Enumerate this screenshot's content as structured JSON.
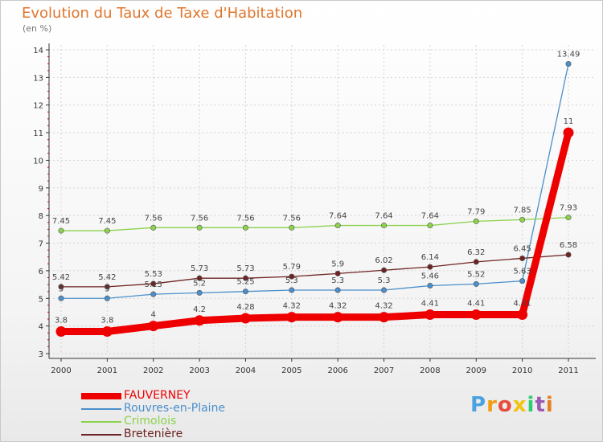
{
  "header": {
    "title": "Evolution du Taux de Taxe d'Habitation",
    "subtitle": "(en %)"
  },
  "colors": {
    "title": "#e0762d",
    "axis": "#333333",
    "grid": "#d4d4d4",
    "tick_marks": "#cc0000"
  },
  "chart_data": {
    "type": "line",
    "title": "Evolution du Taux de Taxe d'Habitation",
    "subtitle": "(en %)",
    "xlabel": "",
    "ylabel": "",
    "x": [
      "2000",
      "2001",
      "2002",
      "2003",
      "2004",
      "2005",
      "2006",
      "2007",
      "2008",
      "2009",
      "2010",
      "2011"
    ],
    "ylim": [
      3,
      14
    ],
    "yticks": [
      3,
      4,
      5,
      6,
      7,
      8,
      9,
      10,
      11,
      12,
      13,
      14
    ],
    "grid": true,
    "legend_position": "bottom-left",
    "series": [
      {
        "name": "FAUVERNEY",
        "color": "#ee0000",
        "thick": true,
        "values": [
          3.8,
          3.8,
          4,
          4.2,
          4.28,
          4.32,
          4.32,
          4.32,
          4.41,
          4.41,
          4.41,
          11
        ],
        "labels": [
          "3.8",
          "3.8",
          "4",
          "4.2",
          "4.28",
          "4.32",
          "4.32",
          "4.32",
          "4.41",
          "4.41",
          "4.41",
          "11"
        ]
      },
      {
        "name": "Rouvres-en-Plaine",
        "color": "#4a8fcb",
        "thick": false,
        "values": [
          5,
          5,
          5.15,
          5.2,
          5.25,
          5.3,
          5.3,
          5.3,
          5.46,
          5.52,
          5.63,
          13.49
        ],
        "labels": [
          "5",
          "5",
          "5.15",
          "5.2",
          "5.25",
          "5.3",
          "5.3",
          "5.3",
          "5.46",
          "5.52",
          "5.63",
          "13.49"
        ]
      },
      {
        "name": "Crimolois",
        "color": "#8cd24e",
        "thick": false,
        "values": [
          7.45,
          7.45,
          7.56,
          7.56,
          7.56,
          7.56,
          7.64,
          7.64,
          7.64,
          7.79,
          7.85,
          7.93
        ],
        "labels": [
          "7.45",
          "7.45",
          "7.56",
          "7.56",
          "7.56",
          "7.56",
          "7.64",
          "7.64",
          "7.64",
          "7.79",
          "7.85",
          "7.93"
        ]
      },
      {
        "name": "Bretenière",
        "color": "#6e2424",
        "thick": false,
        "values": [
          5.42,
          5.42,
          5.53,
          5.73,
          5.73,
          5.79,
          5.9,
          6.02,
          6.14,
          6.32,
          6.45,
          6.58
        ],
        "labels": [
          "5.42",
          "5.42",
          "5.53",
          "5.73",
          "5.73",
          "5.79",
          "5.9",
          "6.02",
          "6.14",
          "6.32",
          "6.45",
          "6.58"
        ]
      }
    ]
  },
  "legend": {
    "items": [
      {
        "label": "FAUVERNEY",
        "color": "#ee0000"
      },
      {
        "label": "Rouvres-en-Plaine",
        "color": "#4a8fcb"
      },
      {
        "label": "Crimolois",
        "color": "#8cd24e"
      },
      {
        "label": "Bretenière",
        "color": "#6e2424"
      }
    ]
  },
  "logo": {
    "text": "Proxiti",
    "letters": [
      "P",
      "r",
      "o",
      "x",
      "i",
      "t",
      "i"
    ],
    "letter_colors": [
      "#4aa3df",
      "#f39c12",
      "#e74c3c",
      "#f1c40f",
      "#2ecc71",
      "#9b59b6",
      "#e67e22"
    ]
  }
}
